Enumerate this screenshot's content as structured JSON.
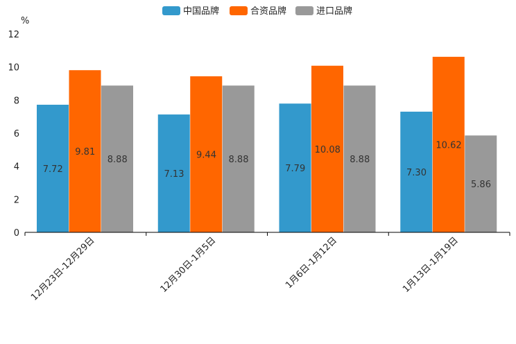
{
  "chart_data": {
    "type": "bar",
    "title": "",
    "ylabel": "%",
    "xlabel": "",
    "ylim": [
      0,
      12
    ],
    "yticks": [
      0,
      2,
      4,
      6,
      8,
      10,
      12
    ],
    "categories": [
      "12月23日-12月29日",
      "12月30日-1月5日",
      "1月6日-1月12日",
      "1月13日-1月19日"
    ],
    "series": [
      {
        "name": "中国品牌",
        "color": "#3399CC",
        "values": [
          7.72,
          7.13,
          7.79,
          7.3
        ],
        "labels": [
          "7.72",
          "7.13",
          "7.79",
          "7.30"
        ]
      },
      {
        "name": "合资品牌",
        "color": "#FF6600",
        "values": [
          9.81,
          9.44,
          10.08,
          10.62
        ],
        "labels": [
          "9.81",
          "9.44",
          "10.08",
          "10.62"
        ]
      },
      {
        "name": "进口品牌",
        "color": "#999999",
        "values": [
          8.88,
          8.88,
          8.88,
          5.86
        ],
        "labels": [
          "8.88",
          "8.88",
          "8.88",
          "5.86"
        ]
      }
    ],
    "legend_position": "top-center",
    "grid": false
  }
}
